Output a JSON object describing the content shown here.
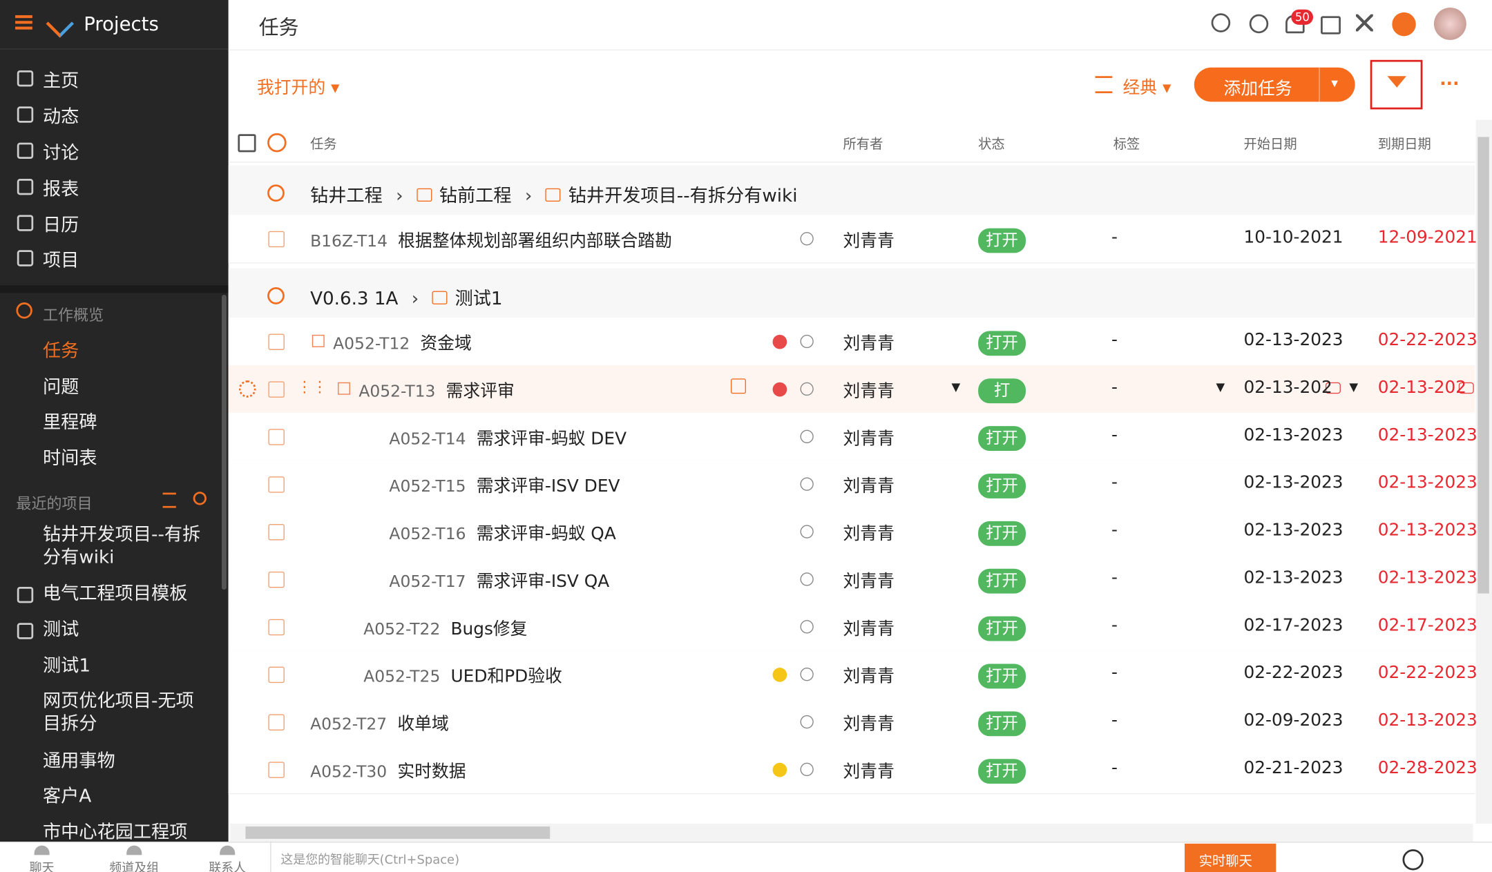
{
  "app": {
    "name": "Projects"
  },
  "sidebar": {
    "nav": [
      "主页",
      "动态",
      "讨论",
      "报表",
      "日历",
      "项目"
    ],
    "section": "工作概览",
    "work_items": [
      "任务",
      "问题",
      "里程碑",
      "时间表"
    ],
    "recent_title": "最近的项目",
    "recent": [
      "钻井开发项目--有拆分有wiki",
      "电气工程项目模板",
      "测试",
      "测试1",
      "网页优化项目-无项目拆分",
      "通用事物",
      "客户A",
      "市中心花园工程项目-"
    ]
  },
  "header": {
    "title": "任务",
    "notification_count": "50"
  },
  "toolbar": {
    "view_filter": "我打开的",
    "layout": "经典",
    "add_button": "添加任务"
  },
  "table": {
    "columns": [
      "任务",
      "所有者",
      "状态",
      "标签",
      "开始日期",
      "到期日期"
    ],
    "groups": [
      {
        "path": [
          "钻井工程",
          "钻前工程",
          "钻井开发项目--有拆分有wiki"
        ],
        "rows": [
          {
            "id": "B16Z-T14",
            "name": "根据整体规划部署组织内部联合踏勘",
            "owner": "刘青青",
            "status": "打开",
            "tag": "-",
            "start": "10-10-2021",
            "due": "12-09-2021"
          }
        ]
      },
      {
        "path": [
          "V0.6.3 1A",
          "测试1"
        ],
        "rows": [
          {
            "id": "A052-T12",
            "name": "资金域",
            "owner": "刘青青",
            "status": "打开",
            "tag": "-",
            "start": "02-13-2023",
            "due": "02-22-2023"
          },
          {
            "id": "A052-T13",
            "name": "需求评审",
            "owner": "刘青青",
            "status": "打",
            "tag": "-",
            "start": "02-13-202",
            "due": "02-13-202"
          },
          {
            "id": "A052-T14",
            "name": "需求评审-蚂蚁 DEV",
            "owner": "刘青青",
            "status": "打开",
            "tag": "-",
            "start": "02-13-2023",
            "due": "02-13-2023"
          },
          {
            "id": "A052-T15",
            "name": "需求评审-ISV DEV",
            "owner": "刘青青",
            "status": "打开",
            "tag": "-",
            "start": "02-13-2023",
            "due": "02-13-2023"
          },
          {
            "id": "A052-T16",
            "name": "需求评审-蚂蚁 QA",
            "owner": "刘青青",
            "status": "打开",
            "tag": "-",
            "start": "02-13-2023",
            "due": "02-13-2023"
          },
          {
            "id": "A052-T17",
            "name": "需求评审-ISV QA",
            "owner": "刘青青",
            "status": "打开",
            "tag": "-",
            "start": "02-13-2023",
            "due": "02-13-2023"
          },
          {
            "id": "A052-T22",
            "name": "Bugs修复",
            "owner": "刘青青",
            "status": "打开",
            "tag": "-",
            "start": "02-17-2023",
            "due": "02-17-2023"
          },
          {
            "id": "A052-T25",
            "name": "UED和PD验收",
            "owner": "刘青青",
            "status": "打开",
            "tag": "-",
            "start": "02-22-2023",
            "due": "02-22-2023"
          },
          {
            "id": "A052-T27",
            "name": "收单域",
            "owner": "刘青青",
            "status": "打开",
            "tag": "-",
            "start": "02-09-2023",
            "due": "02-13-2023"
          },
          {
            "id": "A052-T30",
            "name": "实时数据",
            "owner": "刘青青",
            "status": "打开",
            "tag": "-",
            "start": "02-21-2023",
            "due": "02-28-2023"
          }
        ]
      }
    ]
  },
  "bottom": {
    "tabs": [
      "聊天",
      "频道及组",
      "联系人"
    ],
    "chat_placeholder": "这是您的智能聊天(Ctrl+Space)",
    "live_chat": "实时聊天"
  }
}
